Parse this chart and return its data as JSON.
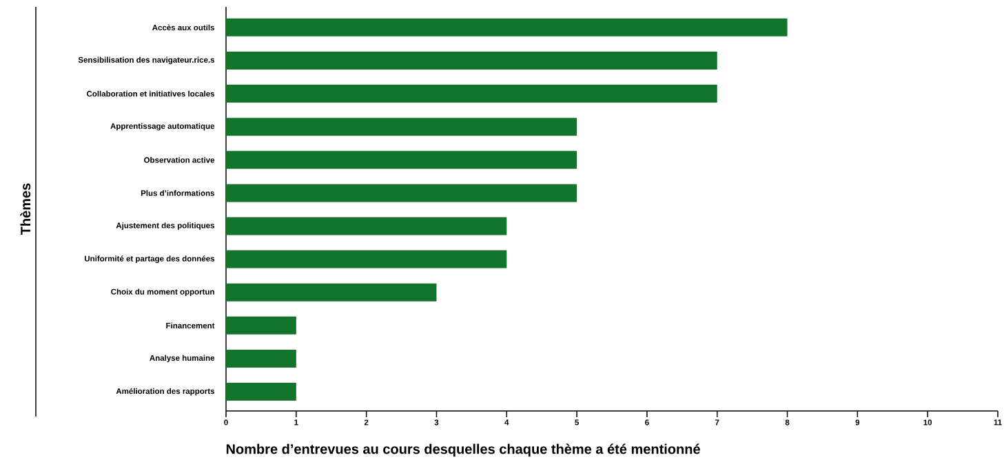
{
  "chart_data": {
    "type": "bar",
    "orientation": "horizontal",
    "xlabel": "Nombre d’entrevues au cours desquelles chaque thème a été mentionné",
    "ylabel": "Thèmes",
    "categories": [
      "Accès aux outils",
      "Sensibilisation des navigateur.rice.s",
      "Collaboration et initiatives locales",
      "Apprentissage automatique",
      "Observation active",
      "Plus d’informations",
      "Ajustement des politiques",
      "Uniformité et partage des données",
      "Choix du moment opportun",
      "Financement",
      "Analyse humaine",
      "Amélioration des rapports"
    ],
    "values": [
      8,
      7,
      7,
      5,
      5,
      5,
      4,
      4,
      3,
      1,
      1,
      1
    ],
    "color": "#13752b",
    "xlim": [
      0,
      11
    ],
    "xticks": [
      0,
      1,
      2,
      3,
      4,
      5,
      6,
      7,
      8,
      9,
      10,
      11
    ]
  }
}
